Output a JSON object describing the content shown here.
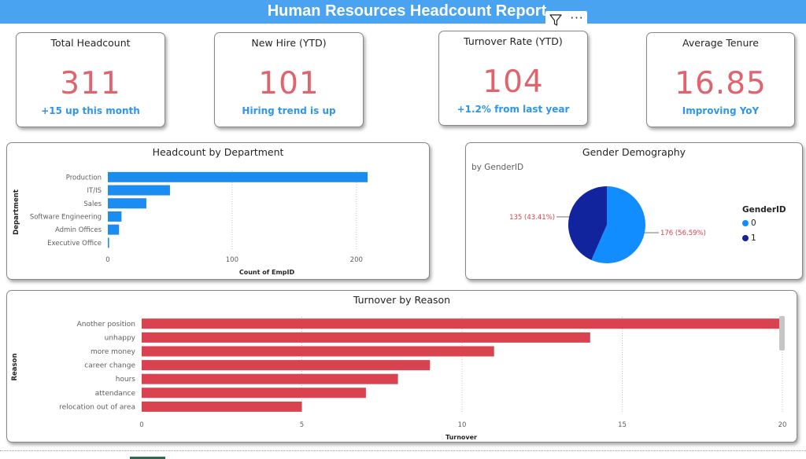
{
  "report": {
    "title": "Human Resources Headcount Report"
  },
  "visual_header": {
    "filter_icon": "filter-icon",
    "more_icon": "more-options-icon",
    "more_label": "···"
  },
  "kpis": [
    {
      "title": "Total Headcount",
      "value": "311",
      "subtitle": "+15 up this month"
    },
    {
      "title": "New Hire (YTD)",
      "value": "101",
      "subtitle": "Hiring trend is up"
    },
    {
      "title": "Turnover Rate (YTD)",
      "value": "104",
      "subtitle": "+1.2% from last year"
    },
    {
      "title": "Average Tenure",
      "value": "16.85",
      "subtitle": "Improving YoY"
    }
  ],
  "colors": {
    "title_bar": "#4aa3f0",
    "kpi_value": "#e0646e",
    "kpi_subtitle": "#2f96e8",
    "dept_bar": "#1b8cf0",
    "turnover_bar": "#d9434f",
    "gender_0": "#118dff",
    "gender_1": "#12239e"
  },
  "chart_data": [
    {
      "type": "bar",
      "orientation": "horizontal",
      "title": "Headcount by Department",
      "xlabel": "Count of EmpID",
      "ylabel": "Department",
      "categories": [
        "Production",
        "IT/IS",
        "Sales",
        "Software Engineering",
        "Admin Offices",
        "Executive Office"
      ],
      "values": [
        209,
        50,
        31,
        11,
        9,
        1
      ],
      "xticks": [
        "0",
        "100",
        "200"
      ],
      "xlim": [
        0,
        209
      ],
      "grid": true
    },
    {
      "type": "pie",
      "title": "Gender Demography",
      "subtitle": "by GenderID",
      "legend_title": "GenderID",
      "legend_position": "right",
      "slices": [
        {
          "name": "0",
          "value": 176,
          "label": "176 (56.59%)"
        },
        {
          "name": "1",
          "value": 135,
          "label": "135 (43.41%)"
        }
      ]
    },
    {
      "type": "bar",
      "orientation": "horizontal",
      "title": "Turnover by Reason",
      "xlabel": "Turnover",
      "ylabel": "Reason",
      "categories": [
        "Another position",
        "unhappy",
        "more money",
        "career change",
        "hours",
        "attendance",
        "relocation out of area"
      ],
      "values": [
        20,
        14,
        11,
        9,
        8,
        7,
        5
      ],
      "xticks": [
        "0",
        "5",
        "10",
        "15",
        "20"
      ],
      "xlim": [
        0,
        20
      ],
      "grid": true
    }
  ]
}
